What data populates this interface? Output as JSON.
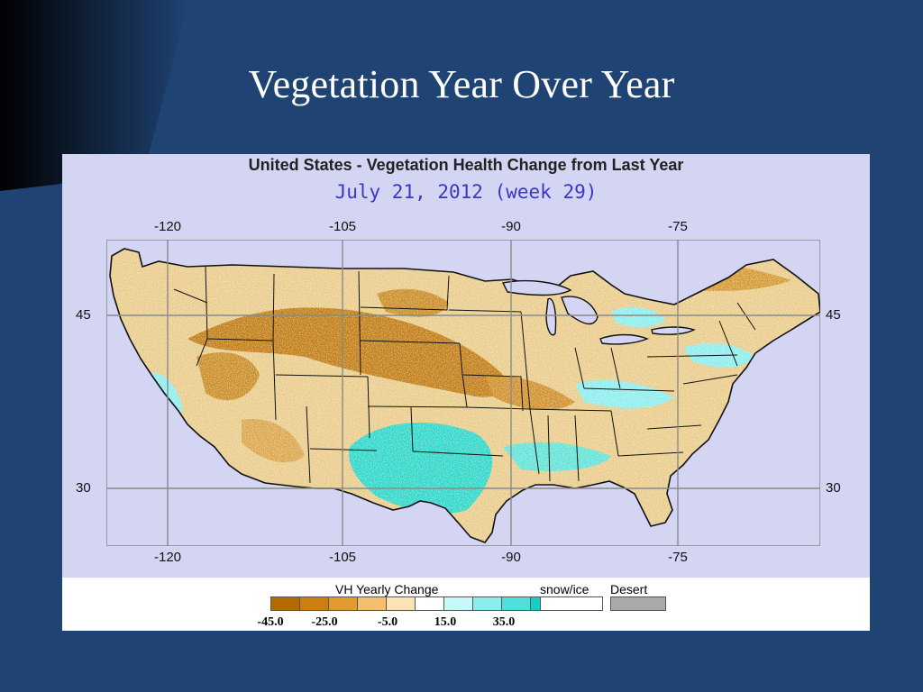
{
  "slide": {
    "title": "Vegetation Year Over Year"
  },
  "map": {
    "title": "United States - Vegetation Health Change from Last Year",
    "date": "July 21, 2012 (week 29)",
    "longitude_labels": [
      "-120",
      "-105",
      "-90",
      "-75"
    ],
    "latitude_labels": [
      "45",
      "30"
    ],
    "colors": {
      "water": "#d4d4f3",
      "background": "#ffffff",
      "slide": "#1f4373",
      "decline": "#c07a10",
      "gain": "#2bd6c8"
    },
    "legend": {
      "title": "VH Yearly Change",
      "scale_colors": [
        "#b36b00",
        "#cc7f0f",
        "#e19a2e",
        "#f2bf6c",
        "#fbe3b4",
        "#ffffff",
        "#c9f8f8",
        "#8ceded",
        "#4fe0dc",
        "#14cfc4",
        "#07a89c"
      ],
      "tick_labels": [
        "-45.0",
        "-25.0",
        "-5.0",
        "15.0",
        "35.0"
      ],
      "snow_ice_label": "snow/ice",
      "snow_ice_color": "#ffffff",
      "desert_label": "Desert",
      "desert_color": "#a9a9a9"
    }
  }
}
